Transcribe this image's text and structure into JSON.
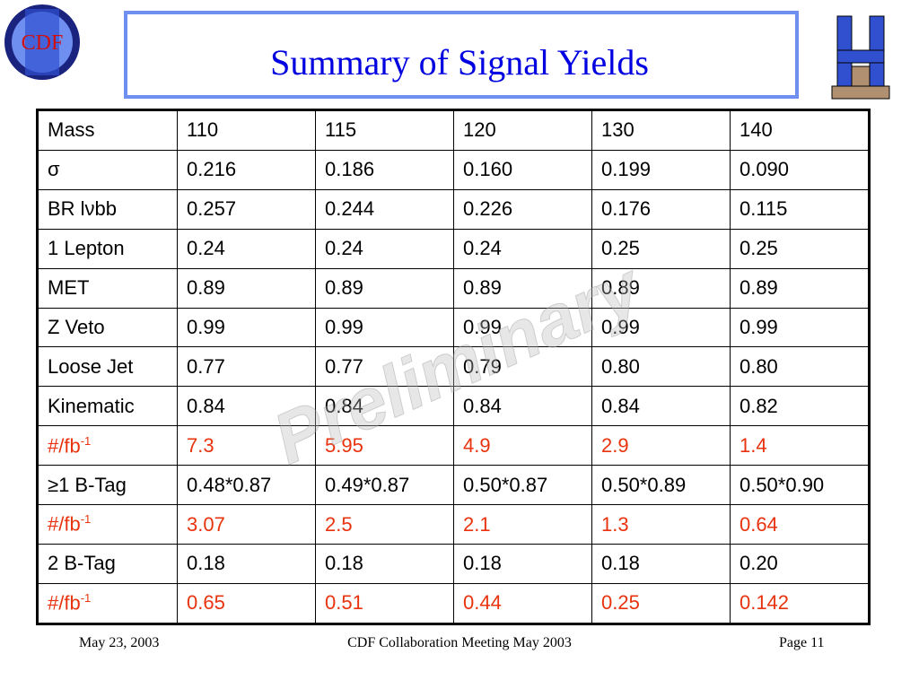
{
  "header": {
    "title": "Summary of Signal Yields",
    "logo_text": "CDF"
  },
  "watermark": "Preliminary",
  "table": {
    "rows": [
      {
        "cells": [
          "Mass",
          "110",
          "115",
          "120",
          "130",
          "140"
        ],
        "color": "#000000"
      },
      {
        "cells": [
          "σ",
          "0.216",
          "0.186",
          "0.160",
          "0.199",
          "0.090"
        ],
        "color": "#000000"
      },
      {
        "cells": [
          "BR lνbb",
          "0.257",
          "0.244",
          "0.226",
          "0.176",
          "0.115"
        ],
        "color": "#000000"
      },
      {
        "cells": [
          "1 Lepton",
          "0.24",
          "0.24",
          "0.24",
          "0.25",
          "0.25"
        ],
        "color": "#000000"
      },
      {
        "cells": [
          "MET",
          "0.89",
          "0.89",
          "0.89",
          "0.89",
          "0.89"
        ],
        "color": "#000000"
      },
      {
        "cells": [
          "Z Veto",
          "0.99",
          "0.99",
          "0.99",
          "0.99",
          "0.99"
        ],
        "color": "#000000"
      },
      {
        "cells": [
          "Loose Jet",
          "0.77",
          "0.77",
          "0.79",
          "0.80",
          "0.80"
        ],
        "color": "#000000"
      },
      {
        "cells": [
          "Kinematic",
          "0.84",
          "0.84",
          "0.84",
          "0.84",
          "0.82"
        ],
        "color": "#000000"
      },
      {
        "cells": [
          "#/fb",
          "7.3",
          "5.95",
          "4.9",
          "2.9",
          "1.4"
        ],
        "sup": "-1",
        "color": "#e8330e"
      },
      {
        "cells": [
          "≥1 B-Tag",
          "0.48*0.87",
          "0.49*0.87",
          "0.50*0.87",
          "0.50*0.89",
          "0.50*0.90"
        ],
        "color": "#000000"
      },
      {
        "cells": [
          "#/fb",
          "3.07",
          "2.5",
          "2.1",
          "1.3",
          "0.64"
        ],
        "sup": "-1",
        "color": "#e8330e"
      },
      {
        "cells": [
          "2 B-Tag",
          "0.18",
          "0.18",
          "0.18",
          "0.18",
          "0.20"
        ],
        "color": "#000000"
      },
      {
        "cells": [
          "#/fb",
          "0.65",
          "0.51",
          "0.44",
          "0.25",
          "0.142"
        ],
        "sup": "-1",
        "color": "#e8330e"
      }
    ]
  },
  "footer": {
    "date": "May 23, 2003",
    "center": "CDF Collaboration Meeting May 2003",
    "page": "Page 11"
  }
}
